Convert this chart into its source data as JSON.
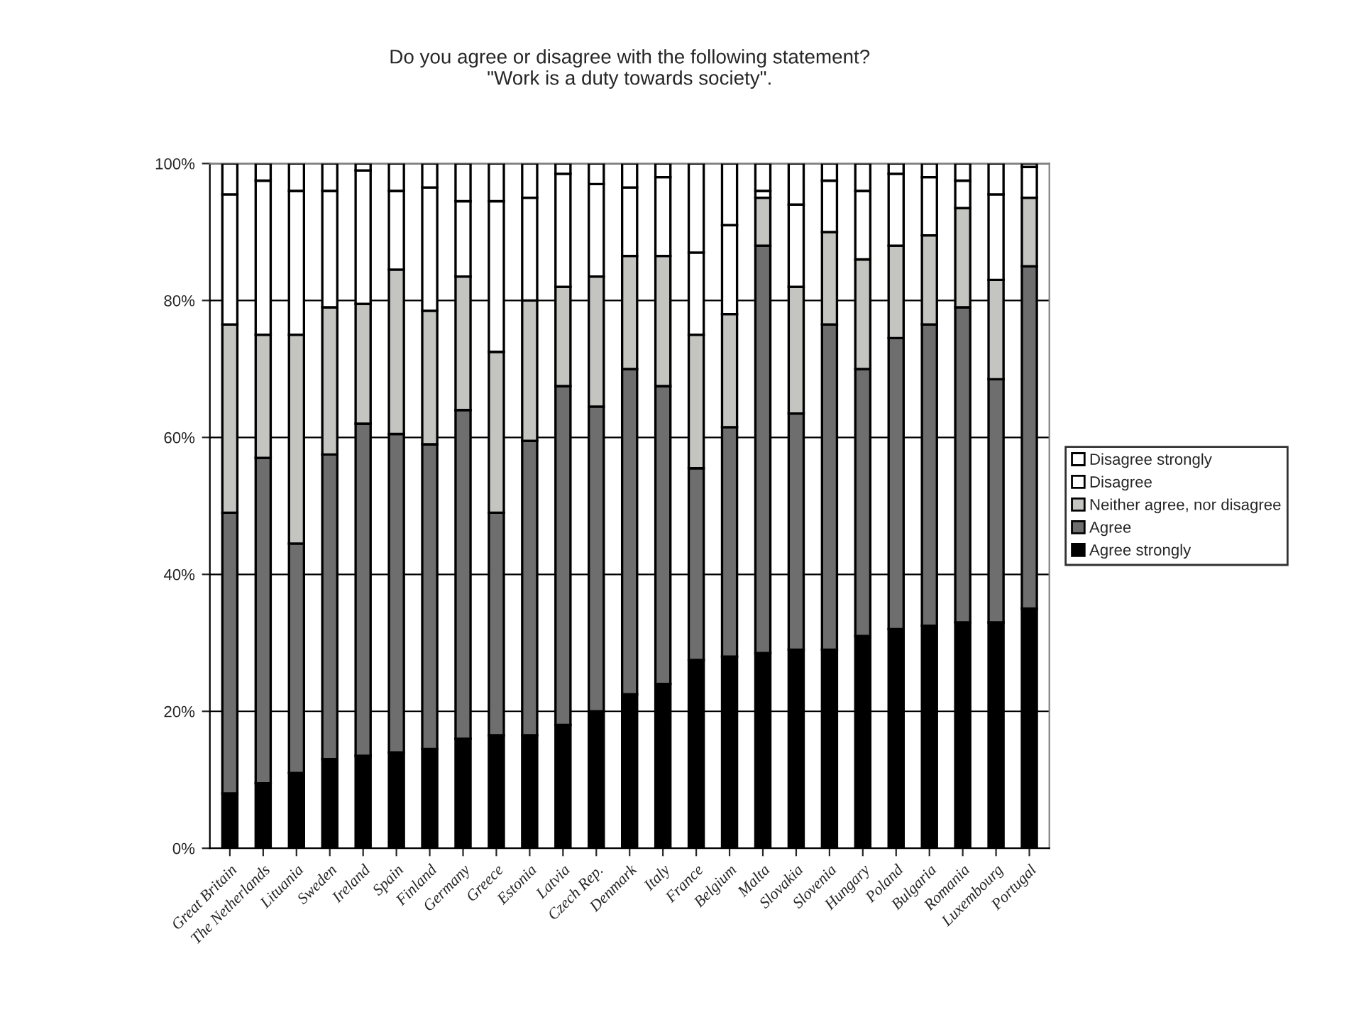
{
  "chart_data": {
    "type": "bar",
    "stacked": true,
    "title": "Do you agree or disagree with the following statement?\n\"Work is a duty towards society\".",
    "categories": [
      "Great Britain",
      "The Netherlands",
      "Lituania",
      "Sweden",
      "Ireland",
      "Spain",
      "Finland",
      "Germany",
      "Greece",
      "Estonia",
      "Latvia",
      "Czech Rep.",
      "Denmark",
      "Italy",
      "France",
      "Belgium",
      "Malta",
      "Slovakia",
      "Slovenia",
      "Hungary",
      "Poland",
      "Bulgaria",
      "Romania",
      "Luxembourg",
      "Portugal"
    ],
    "series": [
      {
        "name": "Agree strongly",
        "color": "#000000",
        "values": [
          8,
          9.5,
          11,
          13,
          13.5,
          14,
          14.5,
          16,
          16.5,
          16.5,
          18,
          20,
          22.5,
          24,
          27.5,
          28,
          28.5,
          29,
          29,
          31,
          32,
          32.5,
          33,
          33,
          35
        ]
      },
      {
        "name": "Agree",
        "color": "#6e6e6e",
        "values": [
          41,
          47.5,
          33.5,
          44.5,
          48.5,
          46.5,
          44.5,
          48,
          32.5,
          43,
          49.5,
          44.5,
          47.5,
          43.5,
          28,
          33.5,
          59.5,
          34.5,
          47.5,
          39,
          42.5,
          44,
          46,
          35.5,
          50
        ]
      },
      {
        "name": "Neither agree, nor disagree",
        "color": "#c4c4c0",
        "values": [
          27.5,
          18,
          30.5,
          21.5,
          17.5,
          24,
          19.5,
          19.5,
          23.5,
          20.5,
          14.5,
          19,
          16.5,
          19,
          19.5,
          16.5,
          7,
          18.5,
          13.5,
          16,
          13.5,
          13,
          14.5,
          14.5,
          10
        ]
      },
      {
        "name": "Disagree",
        "color": "#ffffff",
        "values": [
          19,
          22.5,
          21,
          17,
          19.5,
          11.5,
          18,
          11,
          22,
          15,
          16.5,
          13.5,
          10,
          11.5,
          12,
          13,
          1,
          12,
          7.5,
          10,
          10.5,
          8.5,
          4,
          12.5,
          4.5
        ]
      },
      {
        "name": "Disagree strongly",
        "color": "#ffffff",
        "values": [
          4.5,
          2.5,
          4,
          4,
          1,
          4,
          3.5,
          5.5,
          5.5,
          5,
          1.5,
          3,
          3.5,
          2,
          13,
          9,
          4,
          6,
          2.5,
          4,
          1.5,
          2,
          2.5,
          4.5,
          0.5
        ]
      }
    ],
    "ylim": [
      0,
      100
    ],
    "yticks": [
      {
        "value": 0,
        "label": "0%"
      },
      {
        "value": 20,
        "label": "20%"
      },
      {
        "value": 40,
        "label": "40%"
      },
      {
        "value": 60,
        "label": "60%"
      },
      {
        "value": 80,
        "label": "80%"
      },
      {
        "value": 100,
        "label": "100%"
      }
    ],
    "grid": "y",
    "legend": "right"
  }
}
